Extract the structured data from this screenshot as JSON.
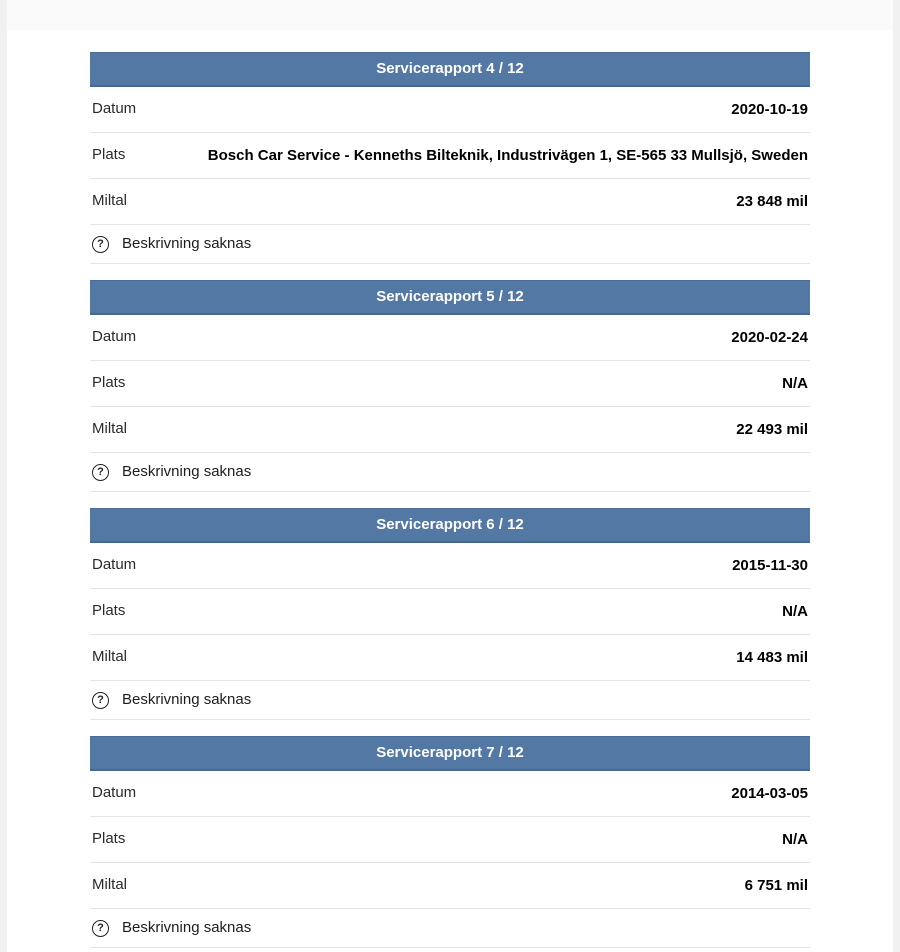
{
  "labels": {
    "datum": "Datum",
    "plats": "Plats",
    "miltal": "Miltal"
  },
  "icons": {
    "question": "?"
  },
  "colors": {
    "header_bg": "#5378a3",
    "header_text": "#ffffff",
    "divider": "#e3e3e3",
    "page_edge": "#f1f1f1"
  },
  "sections": [
    {
      "title": "Servicerapport 4 / 12",
      "datum": "2020-10-19",
      "plats": "Bosch Car Service - Kenneths Bilteknik, Industrivägen 1, SE-565 33 Mullsjö, Sweden",
      "miltal": "23 848 mil",
      "note": "Beskrivning saknas"
    },
    {
      "title": "Servicerapport 5 / 12",
      "datum": "2020-02-24",
      "plats": "N/A",
      "miltal": "22 493 mil",
      "note": "Beskrivning saknas"
    },
    {
      "title": "Servicerapport 6 / 12",
      "datum": "2015-11-30",
      "plats": "N/A",
      "miltal": "14 483 mil",
      "note": "Beskrivning saknas"
    },
    {
      "title": "Servicerapport 7 / 12",
      "datum": "2014-03-05",
      "plats": "N/A",
      "miltal": "6 751 mil",
      "note": "Beskrivning saknas"
    }
  ]
}
